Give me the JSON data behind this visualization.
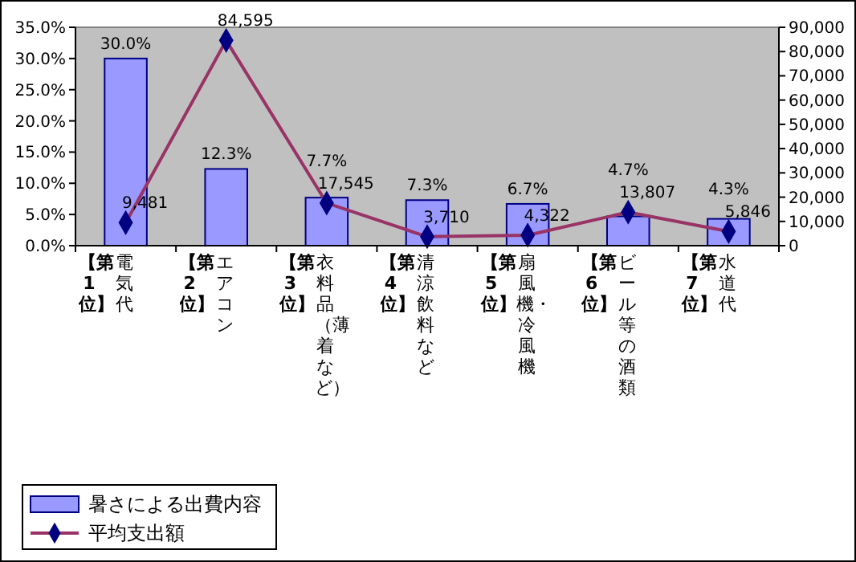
{
  "chart_data": {
    "type": "bar",
    "categories": [
      "【第1位】電気代",
      "【第2位】エアコン",
      "【第3位】衣料品（薄着など）",
      "【第4位】清涼飲料など",
      "【第5位】扇風機・冷風機",
      "【第6位】ビール等の酒類",
      "【第7位】水道代"
    ],
    "series": [
      {
        "name": "暑さによる出費内容",
        "color": "#9999ff",
        "values": [
          30.0,
          12.3,
          7.7,
          7.3,
          6.7,
          4.7,
          4.3
        ],
        "value_labels": [
          "30.0%",
          "12.3%",
          "7.7%",
          "7.3%",
          "6.7%",
          "4.7%",
          "4.3%"
        ]
      },
      {
        "name": "平均支出額",
        "type": "line",
        "axis": "y2",
        "color": "#000080",
        "marker": "diamond",
        "values": [
          9481,
          84595,
          17545,
          3710,
          4322,
          13807,
          5846
        ],
        "value_labels": [
          "9,481",
          "84,595",
          "17,545",
          "3,710",
          "4,322",
          "13,807",
          "5,846"
        ]
      }
    ],
    "ylim": [
      0,
      35
    ],
    "yticks": [
      {
        "value": 0,
        "label": "0.0%"
      },
      {
        "value": 5,
        "label": "5.0%"
      },
      {
        "value": 10,
        "label": "10.0%"
      },
      {
        "value": 15,
        "label": "15.0%"
      },
      {
        "value": 20,
        "label": "20.0%"
      },
      {
        "value": 25,
        "label": "25.0%"
      },
      {
        "value": 30,
        "label": "30.0%"
      },
      {
        "value": 35,
        "label": "35.0%"
      }
    ],
    "y2lim": [
      0,
      90000
    ],
    "y2ticks": [
      0,
      {
        "value": 10000,
        "label": "10,000"
      },
      {
        "value": 20000,
        "label": "20,000"
      },
      {
        "value": 30000,
        "label": "30,000"
      },
      {
        "value": 40000,
        "label": "40,000"
      },
      {
        "value": 50000,
        "label": "50,000"
      },
      {
        "value": 60000,
        "label": "60,000"
      },
      {
        "value": 70000,
        "label": "70,000"
      },
      {
        "value": 80000,
        "label": "80,000"
      },
      {
        "value": 90000,
        "label": "90,000"
      }
    ],
    "grid": false,
    "legend": "bottom left"
  }
}
